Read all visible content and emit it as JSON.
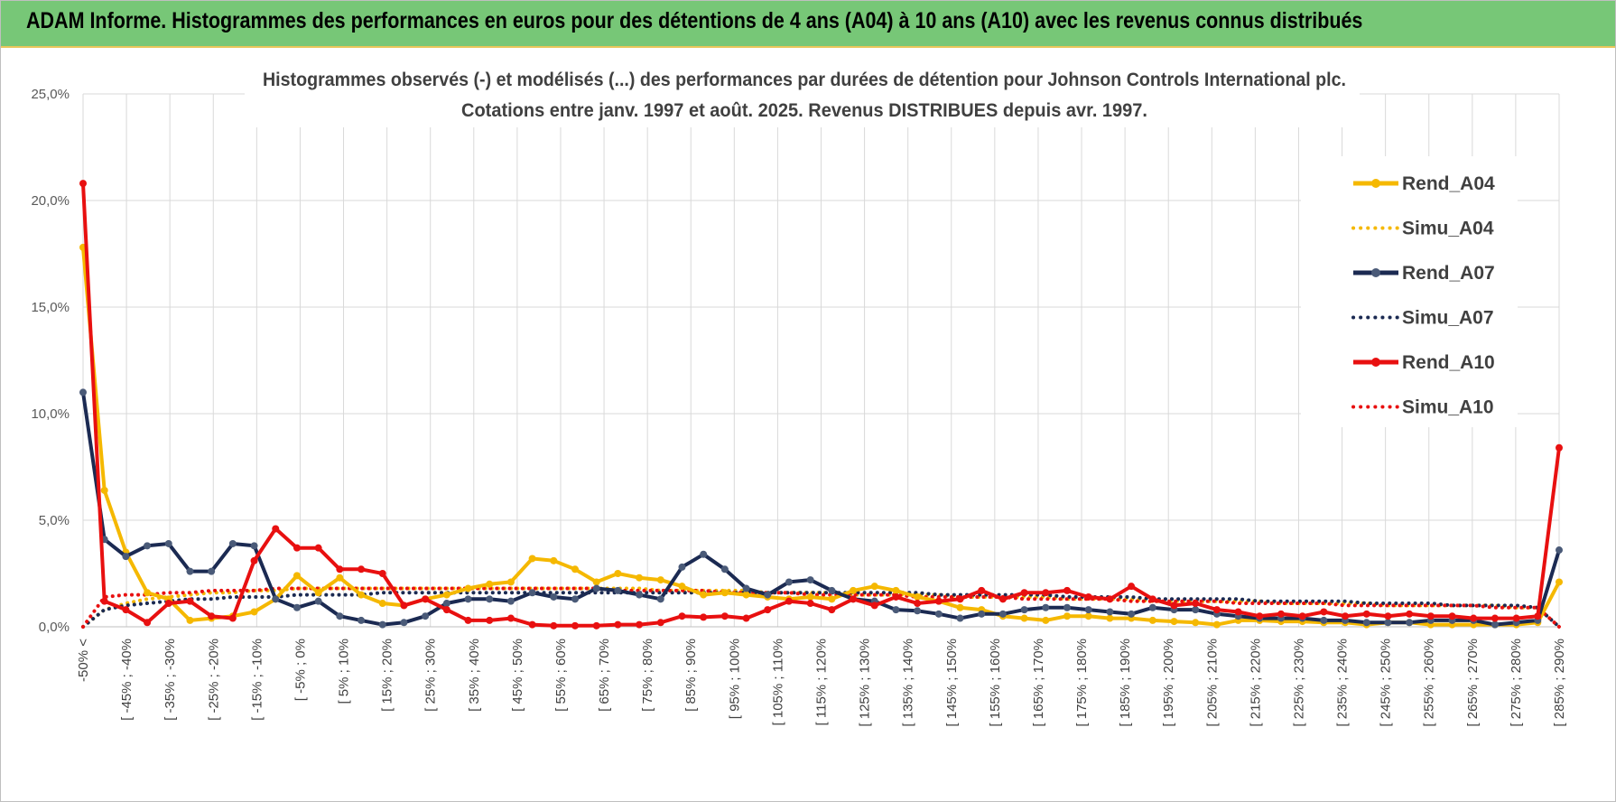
{
  "header": {
    "title": "ADAM Informe. Histogrammes des performances en euros pour des détentions de 4 ans (A04) à 10 ans (A10) avec les revenus connus distribués"
  },
  "chart_data": {
    "type": "line",
    "title": "Histogrammes observés (-) et modélisés (...) des performances par durées de détention pour Johnson Controls International plc.",
    "subtitle": "Cotations entre janv. 1997 et août. 2025. Revenus DISTRIBUES depuis avr. 1997.",
    "xlabel": "",
    "ylabel": "",
    "ylim": [
      0,
      25
    ],
    "yticks": [
      "0,0%",
      "5,0%",
      "10,0%",
      "15,0%",
      "20,0%",
      "25,0%"
    ],
    "grid": true,
    "legend_position": "top-right",
    "x_labels": [
      "-50% <",
      "[ -45% ; -40%",
      "[ -35% ; -30%",
      "[ -25% ; -20%",
      "[ -15% ; -10%",
      "[ -5% ; 0%",
      "[ 5% ; 10%",
      "[ 15% ; 20%",
      "[ 25% ; 30%",
      "[ 35% ; 40%",
      "[ 45% ; 50%",
      "[ 55% ; 60%",
      "[ 65% ; 70%",
      "[ 75% ; 80%",
      "[ 85% ; 90%",
      "[ 95% ; 100%",
      "[ 105% ; 110%",
      "[ 115% ; 120%",
      "[ 125% ; 130%",
      "[ 135% ; 140%",
      "[ 145% ; 150%",
      "[ 155% ; 160%",
      "[ 165% ; 170%",
      "[ 175% ; 180%",
      "[ 185% ; 190%",
      "[ 195% ; 200%",
      "[ 205% ; 210%",
      "[ 215% ; 220%",
      "[ 225% ; 230%",
      "[ 235% ; 240%",
      "[ 245% ; 250%",
      "[ 255% ; 260%",
      "[ 265% ; 270%",
      "[ 275% ; 280%",
      "[ 285% ; 290%"
    ],
    "series": [
      {
        "name": "Rend_A04",
        "style": "solid",
        "color": "#f5b800",
        "values": [
          17.8,
          6.4,
          3.5,
          1.6,
          1.3,
          0.3,
          0.4,
          0.5,
          0.7,
          1.3,
          2.4,
          1.6,
          2.3,
          1.5,
          1.1,
          1.0,
          1.3,
          1.5,
          1.8,
          2.0,
          2.1,
          3.2,
          3.1,
          2.7,
          2.1,
          2.5,
          2.3,
          2.2,
          1.9,
          1.5,
          1.6,
          1.5,
          1.4,
          1.3,
          1.4,
          1.3,
          1.7,
          1.9,
          1.7,
          1.4,
          1.2,
          0.9,
          0.8,
          0.5,
          0.4,
          0.3,
          0.5,
          0.5,
          0.4,
          0.4,
          0.3,
          0.25,
          0.2,
          0.1,
          0.3,
          0.3,
          0.25,
          0.25,
          0.2,
          0.2,
          0.1,
          0.2,
          0.2,
          0.1,
          0.1,
          0.1,
          0.1,
          0.1,
          0.2,
          2.1
        ]
      },
      {
        "name": "Simu_A04",
        "style": "dotted",
        "color": "#f5b800",
        "values": [
          0.0,
          0.8,
          1.1,
          1.3,
          1.4,
          1.5,
          1.6,
          1.6,
          1.7,
          1.7,
          1.8,
          1.8,
          1.8,
          1.8,
          1.8,
          1.8,
          1.8,
          1.8,
          1.8,
          1.8,
          1.8,
          1.8,
          1.8,
          1.8,
          1.8,
          1.8,
          1.8,
          1.7,
          1.7,
          1.7,
          1.7,
          1.7,
          1.6,
          1.6,
          1.6,
          1.6,
          1.5,
          1.5,
          1.5,
          1.5,
          1.5,
          1.4,
          1.4,
          1.4,
          1.4,
          1.4,
          1.3,
          1.3,
          1.3,
          1.3,
          1.2,
          1.2,
          1.2,
          1.2,
          1.2,
          1.2,
          1.1,
          1.1,
          1.1,
          1.1,
          1.1,
          1.0,
          1.0,
          1.0,
          1.0,
          1.0,
          1.0,
          0.9,
          0.9,
          0.0
        ]
      },
      {
        "name": "Rend_A07",
        "style": "solid",
        "color": "#1b2a52",
        "values": [
          11.0,
          4.1,
          3.3,
          3.8,
          3.9,
          2.6,
          2.6,
          3.9,
          3.8,
          1.3,
          0.9,
          1.2,
          0.5,
          0.3,
          0.1,
          0.2,
          0.5,
          1.1,
          1.3,
          1.3,
          1.2,
          1.6,
          1.4,
          1.3,
          1.8,
          1.7,
          1.5,
          1.3,
          2.8,
          3.4,
          2.7,
          1.8,
          1.5,
          2.1,
          2.2,
          1.7,
          1.3,
          1.2,
          0.8,
          0.75,
          0.6,
          0.4,
          0.6,
          0.6,
          0.8,
          0.9,
          0.9,
          0.8,
          0.7,
          0.6,
          0.9,
          0.8,
          0.8,
          0.6,
          0.5,
          0.4,
          0.4,
          0.4,
          0.3,
          0.3,
          0.2,
          0.2,
          0.2,
          0.3,
          0.3,
          0.3,
          0.1,
          0.2,
          0.3,
          3.6
        ]
      },
      {
        "name": "Simu_A07",
        "style": "dotted",
        "color": "#1b2a52",
        "values": [
          0.0,
          0.8,
          1.0,
          1.1,
          1.2,
          1.3,
          1.3,
          1.4,
          1.4,
          1.4,
          1.5,
          1.5,
          1.5,
          1.5,
          1.6,
          1.6,
          1.6,
          1.6,
          1.6,
          1.6,
          1.6,
          1.6,
          1.6,
          1.6,
          1.6,
          1.6,
          1.6,
          1.6,
          1.6,
          1.6,
          1.6,
          1.6,
          1.6,
          1.6,
          1.6,
          1.6,
          1.6,
          1.6,
          1.6,
          1.6,
          1.5,
          1.5,
          1.5,
          1.5,
          1.5,
          1.5,
          1.4,
          1.4,
          1.4,
          1.4,
          1.3,
          1.3,
          1.3,
          1.3,
          1.3,
          1.2,
          1.2,
          1.2,
          1.2,
          1.2,
          1.1,
          1.1,
          1.1,
          1.1,
          1.0,
          1.0,
          1.0,
          1.0,
          0.9,
          0.0
        ]
      },
      {
        "name": "Rend_A10",
        "style": "solid",
        "color": "#e81010",
        "values": [
          20.8,
          1.2,
          0.8,
          0.2,
          1.1,
          1.2,
          0.5,
          0.4,
          3.1,
          4.6,
          3.7,
          3.7,
          2.7,
          2.7,
          2.5,
          1.0,
          1.3,
          0.8,
          0.3,
          0.3,
          0.4,
          0.1,
          0.05,
          0.05,
          0.05,
          0.1,
          0.1,
          0.2,
          0.5,
          0.45,
          0.5,
          0.4,
          0.8,
          1.2,
          1.1,
          0.8,
          1.3,
          1.0,
          1.4,
          1.1,
          1.2,
          1.3,
          1.7,
          1.3,
          1.6,
          1.6,
          1.7,
          1.4,
          1.3,
          1.9,
          1.3,
          1.0,
          1.1,
          0.8,
          0.7,
          0.5,
          0.6,
          0.5,
          0.7,
          0.5,
          0.6,
          0.5,
          0.6,
          0.5,
          0.5,
          0.4,
          0.4,
          0.4,
          0.5,
          8.4
        ]
      },
      {
        "name": "Simu_A10",
        "style": "dotted",
        "color": "#e81010",
        "values": [
          0.0,
          1.4,
          1.5,
          1.5,
          1.6,
          1.6,
          1.7,
          1.7,
          1.7,
          1.8,
          1.8,
          1.8,
          1.8,
          1.8,
          1.8,
          1.8,
          1.8,
          1.8,
          1.8,
          1.8,
          1.8,
          1.8,
          1.8,
          1.8,
          1.8,
          1.7,
          1.7,
          1.7,
          1.7,
          1.7,
          1.6,
          1.6,
          1.6,
          1.6,
          1.5,
          1.5,
          1.5,
          1.5,
          1.5,
          1.4,
          1.4,
          1.4,
          1.4,
          1.4,
          1.3,
          1.3,
          1.3,
          1.3,
          1.3,
          1.2,
          1.2,
          1.2,
          1.2,
          1.2,
          1.1,
          1.1,
          1.1,
          1.1,
          1.1,
          1.0,
          1.0,
          1.0,
          1.0,
          1.0,
          1.0,
          1.0,
          0.9,
          0.9,
          0.9,
          0.0
        ]
      }
    ]
  }
}
